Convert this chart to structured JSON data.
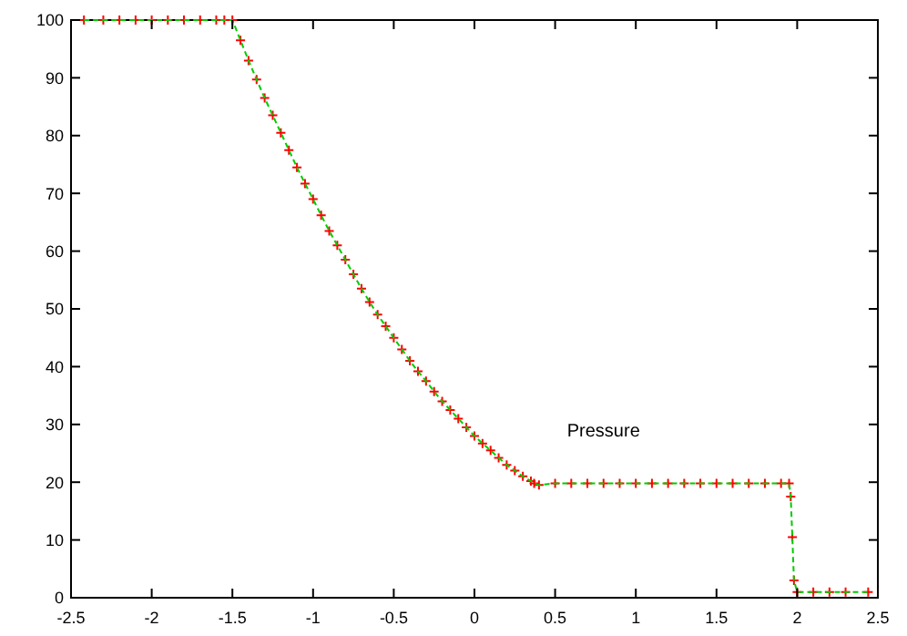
{
  "chart_data": {
    "type": "scatter",
    "annotations": [
      "Pressure"
    ],
    "x": [
      -2.42,
      -2.3,
      -2.2,
      -2.1,
      -2.0,
      -1.9,
      -1.8,
      -1.7,
      -1.6,
      -1.55,
      -1.5,
      -1.45,
      -1.4,
      -1.35,
      -1.3,
      -1.25,
      -1.2,
      -1.15,
      -1.1,
      -1.05,
      -1,
      -0.95,
      -0.9,
      -0.85,
      -0.8,
      -0.75,
      -0.7,
      -0.65,
      -0.6,
      -0.55,
      -0.5,
      -0.45,
      -0.4,
      -0.35,
      -0.3,
      -0.25,
      -0.2,
      -0.15,
      -0.1,
      -0.05,
      0,
      0.05,
      0.1,
      0.15,
      0.2,
      0.25,
      0.3,
      0.35,
      0.37,
      0.4,
      0.5,
      0.6,
      0.7,
      0.8,
      0.9,
      1.0,
      1.1,
      1.2,
      1.3,
      1.4,
      1.5,
      1.6,
      1.7,
      1.8,
      1.9,
      1.95,
      1.96,
      1.97,
      1.98,
      2.0,
      2.1,
      2.2,
      2.3,
      2.44
    ],
    "series": [
      {
        "marker": "cross",
        "color": "#ff0000",
        "values": [
          100,
          100,
          100,
          100,
          100,
          100,
          100,
          100,
          100,
          100,
          100,
          96.5,
          93,
          89.7,
          86.5,
          83.5,
          80.5,
          77.5,
          74.5,
          71.7,
          69,
          66.2,
          63.5,
          61,
          58.5,
          56,
          53.5,
          51.2,
          49,
          47,
          45,
          43,
          41,
          39.2,
          37.5,
          35.7,
          34,
          32.5,
          31,
          29.5,
          28,
          26.7,
          25.5,
          24.2,
          23,
          22,
          21,
          20.2,
          19.8,
          19.5,
          19.8,
          19.8,
          19.8,
          19.8,
          19.8,
          19.8,
          19.8,
          19.8,
          19.8,
          19.8,
          19.8,
          19.8,
          19.8,
          19.8,
          19.8,
          19.8,
          17.5,
          10.5,
          3,
          1,
          1,
          1,
          1,
          1
        ]
      },
      {
        "type": "line",
        "line_style": "dashed",
        "marker": "none",
        "color": "#00cc00",
        "values": [
          100,
          100,
          100,
          100,
          100,
          100,
          100,
          100,
          100,
          100,
          100,
          96.5,
          93,
          89.7,
          86.5,
          83.5,
          80.5,
          77.5,
          74.5,
          71.7,
          69,
          66.2,
          63.5,
          61,
          58.5,
          56,
          53.5,
          51.2,
          49,
          47,
          45,
          43,
          41,
          39.2,
          37.5,
          35.7,
          34,
          32.5,
          31,
          29.5,
          28,
          26.7,
          25.5,
          24.2,
          23,
          22,
          21,
          20.2,
          19.8,
          19.5,
          19.8,
          19.8,
          19.8,
          19.8,
          19.8,
          19.8,
          19.8,
          19.8,
          19.8,
          19.8,
          19.8,
          19.8,
          19.8,
          19.8,
          19.8,
          19.8,
          17.5,
          10.5,
          3,
          1,
          1,
          1,
          1,
          1
        ]
      }
    ],
    "xlim": [
      -2.5,
      2.5
    ],
    "xticks": [
      -2.5,
      -2,
      -1.5,
      -1,
      -0.5,
      0,
      0.5,
      1,
      1.5,
      2,
      2.5
    ],
    "ylim": [
      0,
      100
    ],
    "yticks": [
      0,
      10,
      20,
      30,
      40,
      50,
      60,
      70,
      80,
      90,
      100
    ],
    "grid": false
  }
}
